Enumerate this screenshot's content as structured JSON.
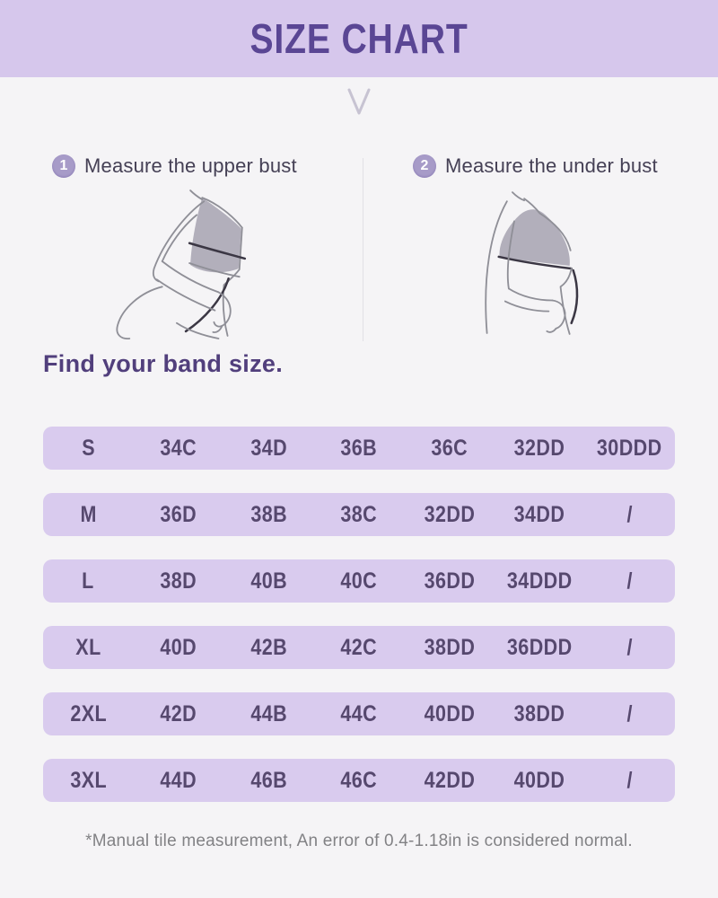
{
  "title": "SIZE CHART",
  "chevron_icon": "chevron-down",
  "steps": [
    {
      "number": "1",
      "label": "Measure the upper bust"
    },
    {
      "number": "2",
      "label": "Measure the under bust"
    }
  ],
  "band_size_heading": "Find your band size.",
  "size_rows": [
    {
      "size": "S",
      "values": [
        "34C",
        "34D",
        "36B",
        "36C",
        "32DD",
        "30DDD"
      ]
    },
    {
      "size": "M",
      "values": [
        "36D",
        "38B",
        "38C",
        "32DD",
        "34DD",
        "/"
      ]
    },
    {
      "size": "L",
      "values": [
        "38D",
        "40B",
        "40C",
        "36DD",
        "34DDD",
        "/"
      ]
    },
    {
      "size": "XL",
      "values": [
        "40D",
        "42B",
        "42C",
        "38DD",
        "36DDD",
        "/"
      ]
    },
    {
      "size": "2XL",
      "values": [
        "42D",
        "44B",
        "44C",
        "40DD",
        "38DD",
        "/"
      ]
    },
    {
      "size": "3XL",
      "values": [
        "44D",
        "46B",
        "46C",
        "42DD",
        "40DD",
        "/"
      ]
    }
  ],
  "footnote": "*Manual tile measurement, An error of 0.4-1.18in is considered normal.",
  "colors": {
    "header_bg": "#d6c7ec",
    "header_text": "#5a4694",
    "row_bg": "#d9cbee",
    "row_text": "#56486e",
    "step_text": "#454055",
    "badge_bg": "#a79bc8",
    "badge_text": "#ffffff",
    "heading_text": "#513f7c",
    "footnote_text": "#828285",
    "page_bg": "#f5f4f6",
    "chevron": "#c7c3d2",
    "illustration_line": "#8f8f97",
    "bra_fill": "#b2afbb",
    "tape": "#3b3744"
  },
  "chart_data": {
    "type": "table",
    "title": "SIZE CHART",
    "section": "Find your band size.",
    "rows": [
      [
        "S",
        "34C",
        "34D",
        "36B",
        "36C",
        "32DD",
        "30DDD"
      ],
      [
        "M",
        "36D",
        "38B",
        "38C",
        "32DD",
        "34DD",
        "/"
      ],
      [
        "L",
        "38D",
        "40B",
        "40C",
        "36DD",
        "34DDD",
        "/"
      ],
      [
        "XL",
        "40D",
        "42B",
        "42C",
        "38DD",
        "36DDD",
        "/"
      ],
      [
        "2XL",
        "42D",
        "44B",
        "44C",
        "40DD",
        "38DD",
        "/"
      ],
      [
        "3XL",
        "44D",
        "46B",
        "46C",
        "42DD",
        "40DD",
        "/"
      ]
    ],
    "note": "*Manual tile measurement, An error of 0.4-1.18in is considered normal."
  }
}
